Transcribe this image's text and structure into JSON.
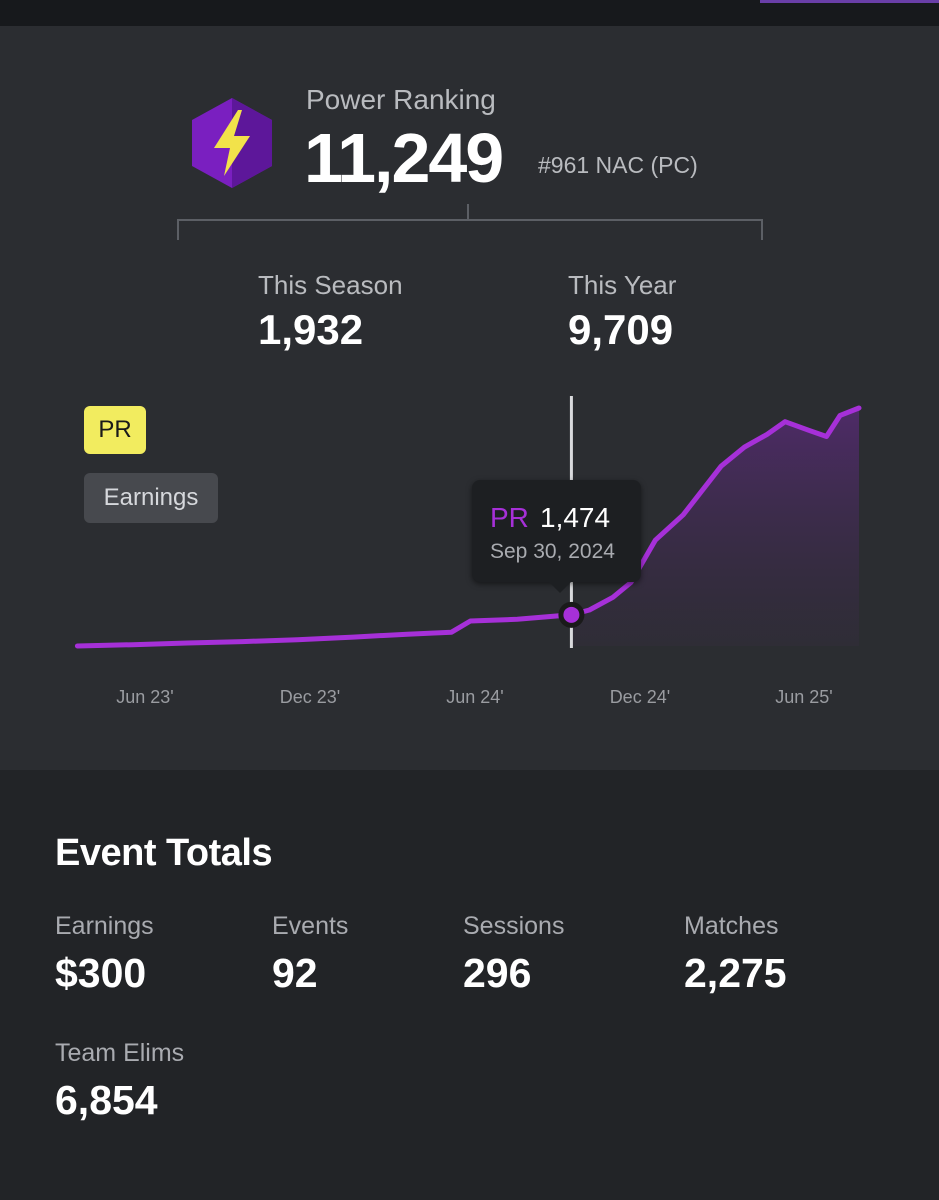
{
  "power_ranking": {
    "title": "Power Ranking",
    "value": "11,249",
    "rank": "#961 NAC (PC)"
  },
  "summary": {
    "season_label": "This Season",
    "season_value": "1,932",
    "year_label": "This Year",
    "year_value": "9,709"
  },
  "chart_toggle": {
    "pr_label": "PR",
    "earnings_label": "Earnings"
  },
  "tooltip": {
    "series": "PR",
    "value": "1,474",
    "date": "Sep 30, 2024"
  },
  "chart_data": {
    "type": "area",
    "xticks": [
      "Jun 23'",
      "Dec 23'",
      "Jun 24'",
      "Dec 24'",
      "Jun 25'"
    ],
    "series": [
      {
        "name": "PR",
        "color": "#a630d8",
        "points": [
          [
            "2023-04-01",
            0
          ],
          [
            "2023-06-01",
            60
          ],
          [
            "2023-08-01",
            140
          ],
          [
            "2023-10-01",
            210
          ],
          [
            "2023-12-01",
            300
          ],
          [
            "2024-02-01",
            420
          ],
          [
            "2024-04-01",
            560
          ],
          [
            "2024-05-20",
            650
          ],
          [
            "2024-06-10",
            1180
          ],
          [
            "2024-08-01",
            1260
          ],
          [
            "2024-09-30",
            1474
          ],
          [
            "2024-10-20",
            1700
          ],
          [
            "2024-11-15",
            2300
          ],
          [
            "2024-12-05",
            3000
          ],
          [
            "2025-01-01",
            5000
          ],
          [
            "2025-02-01",
            6200
          ],
          [
            "2025-03-15",
            8500
          ],
          [
            "2025-04-10",
            9400
          ],
          [
            "2025-05-05",
            10000
          ],
          [
            "2025-05-25",
            10600
          ],
          [
            "2025-06-20",
            10200
          ],
          [
            "2025-07-10",
            9900
          ],
          [
            "2025-07-25",
            10900
          ],
          [
            "2025-08-15",
            11249
          ]
        ]
      }
    ],
    "highlight": {
      "date": "2024-09-30",
      "value": 1474
    },
    "grid": false,
    "legend": "none"
  },
  "event_totals": {
    "title": "Event Totals",
    "stats": [
      {
        "label": "Earnings",
        "value": "$300"
      },
      {
        "label": "Events",
        "value": "92"
      },
      {
        "label": "Sessions",
        "value": "296"
      },
      {
        "label": "Matches",
        "value": "2,275"
      },
      {
        "label": "Team Elims",
        "value": "6,854"
      }
    ]
  },
  "colors": {
    "accent_purple": "#a630d8",
    "pr_pill": "#f2ec5f",
    "card_bg": "#2b2d31",
    "page_bg": "#222427"
  }
}
